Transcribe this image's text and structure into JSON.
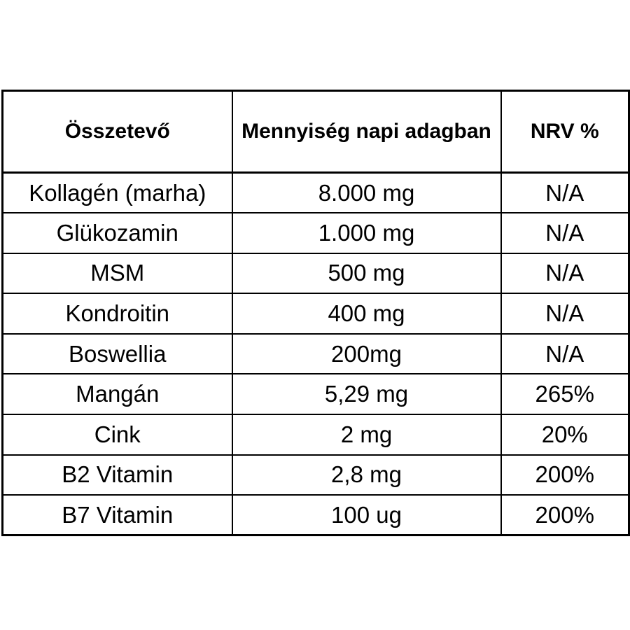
{
  "table": {
    "headers": [
      "Összetevő",
      "Mennyiség napi adagban",
      "NRV %"
    ],
    "rows": [
      [
        "Kollagén (marha)",
        "8.000 mg",
        "N/A"
      ],
      [
        "Glükozamin",
        "1.000 mg",
        "N/A"
      ],
      [
        "MSM",
        "500 mg",
        "N/A"
      ],
      [
        "Kondroitin",
        "400 mg",
        "N/A"
      ],
      [
        "Boswellia",
        "200mg",
        "N/A"
      ],
      [
        "Mangán",
        "5,29 mg",
        "265%"
      ],
      [
        "Cink",
        "2 mg",
        "20%"
      ],
      [
        "B2 Vitamin",
        "2,8 mg",
        "200%"
      ],
      [
        "B7 Vitamin",
        "100 ug",
        "200%"
      ]
    ]
  }
}
